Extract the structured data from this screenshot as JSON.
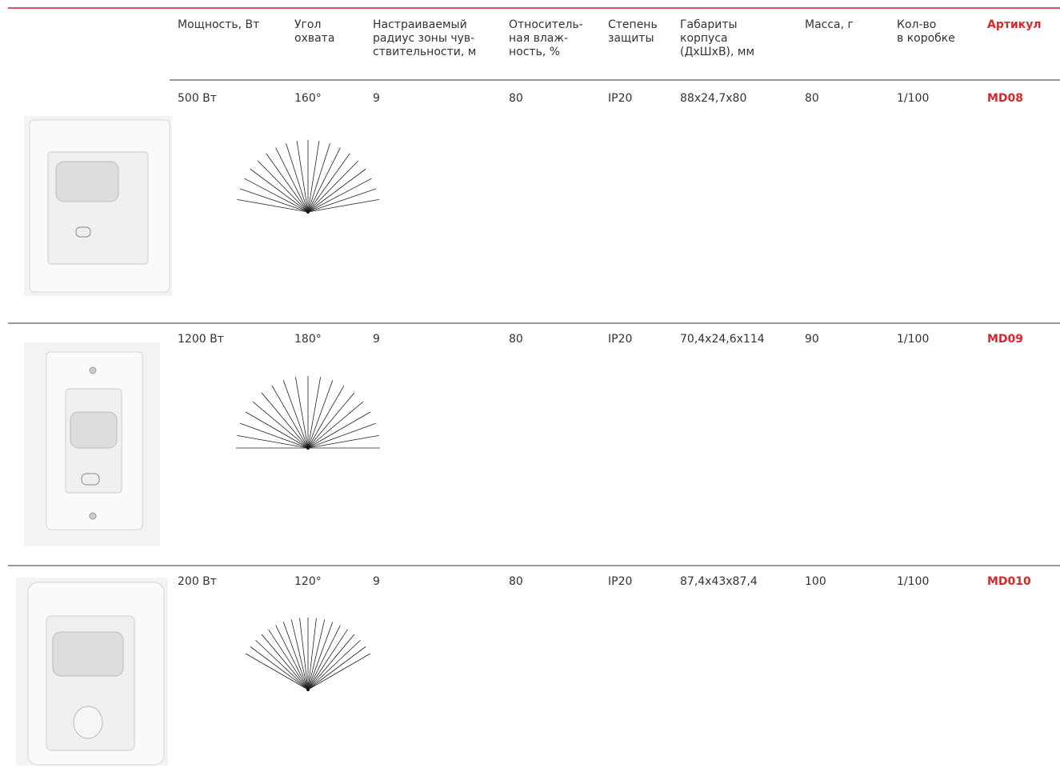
{
  "table": {
    "header": [
      [
        "Мощность, Вт"
      ],
      [
        "Угол",
        "охвата"
      ],
      [
        "Настраиваемый",
        "радиус зоны чув-",
        "ствительности, м"
      ],
      [
        "Относитель-",
        "ная влаж-",
        "ность, %"
      ],
      [
        "Степень",
        "защиты"
      ],
      [
        "Габариты",
        "корпуса",
        "(ДхШхВ), мм"
      ],
      [
        "Масса, г"
      ],
      [
        "Кол-во",
        "в коробке"
      ],
      [
        "Артикул"
      ]
    ],
    "rows": [
      [
        "500 Вт",
        "160°",
        "9",
        "80",
        "IP20",
        "88x24,7x80",
        "80",
        "1/100",
        "MD08"
      ],
      [
        "1200 Вт",
        "180°",
        "9",
        "80",
        "IP20",
        "70,4x24,6x114",
        "90",
        "1/100",
        "MD09"
      ],
      [
        "200 Вт",
        "120°",
        "9",
        "80",
        "IP20",
        "87,4x43x87,4",
        "100",
        "1/100",
        "MD010"
      ]
    ]
  }
}
